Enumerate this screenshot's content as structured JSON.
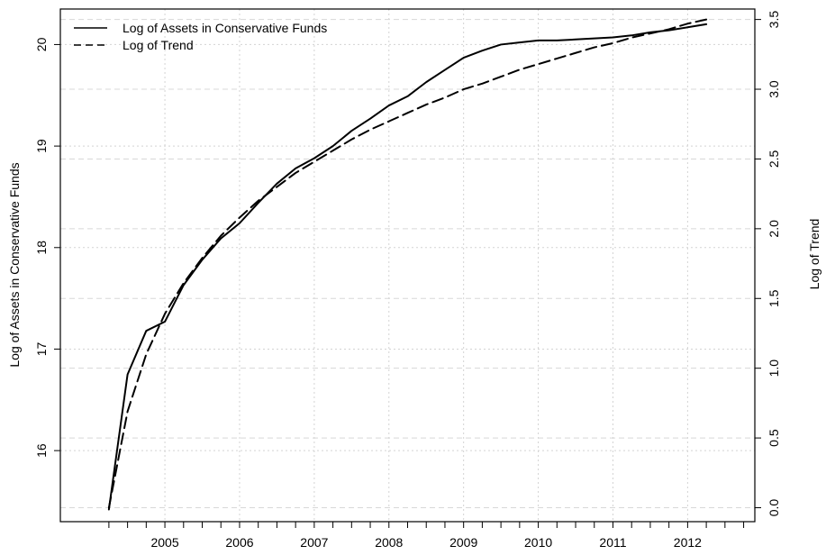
{
  "chart_data": {
    "type": "line",
    "title": "",
    "xlabel": "",
    "ylabel": "Log of Assets in Conservative Funds",
    "ylabel_right": "Log of Trend",
    "x_ticks": [
      2005,
      2006,
      2007,
      2008,
      2009,
      2010,
      2011,
      2012
    ],
    "x_tick_labels": [
      "2005",
      "2006",
      "2007",
      "2008",
      "2009",
      "2010",
      "2011",
      "2012"
    ],
    "x_minor_tick_step": 0.25,
    "xlim": [
      2003.6,
      2012.9
    ],
    "ylim": [
      15.3,
      20.35
    ],
    "y_ticks": [
      16,
      17,
      18,
      19,
      20
    ],
    "y_tick_labels": [
      "16",
      "17",
      "18",
      "19",
      "20"
    ],
    "ylim_right": [
      -0.1,
      3.575
    ],
    "y_ticks_right": [
      0.0,
      0.5,
      1.0,
      1.5,
      2.0,
      2.5,
      3.0,
      3.5
    ],
    "y_tick_labels_right": [
      "0.0",
      "0.5",
      "1.0",
      "1.5",
      "2.0",
      "2.5",
      "3.0",
      "3.5"
    ],
    "grid": true,
    "legend_position": "top-left",
    "series": [
      {
        "name": "Log of Assets in Conservative Funds",
        "axis": "left",
        "style": "solid",
        "color": "#000000",
        "x": [
          2004.25,
          2004.5,
          2004.75,
          2005.0,
          2005.25,
          2005.5,
          2005.75,
          2006.0,
          2006.25,
          2006.5,
          2006.75,
          2007.0,
          2007.25,
          2007.5,
          2007.75,
          2008.0,
          2008.25,
          2008.5,
          2008.75,
          2009.0,
          2009.25,
          2009.5,
          2009.75,
          2010.0,
          2010.25,
          2010.5,
          2010.75,
          2011.0,
          2011.25,
          2011.5,
          2011.75,
          2012.0,
          2012.25
        ],
        "values": [
          15.42,
          16.75,
          17.18,
          17.27,
          17.63,
          17.88,
          18.09,
          18.24,
          18.44,
          18.63,
          18.78,
          18.88,
          19.0,
          19.15,
          19.27,
          19.4,
          19.49,
          19.63,
          19.75,
          19.87,
          19.94,
          20.0,
          20.02,
          20.04,
          20.04,
          20.05,
          20.06,
          20.07,
          20.09,
          20.12,
          20.14,
          20.17,
          20.2
        ]
      },
      {
        "name": "Log of Trend",
        "axis": "right",
        "style": "dashed",
        "color": "#000000",
        "x": [
          2004.25,
          2004.5,
          2004.75,
          2005.0,
          2005.25,
          2005.5,
          2005.75,
          2006.0,
          2006.25,
          2006.5,
          2006.75,
          2007.0,
          2007.25,
          2007.5,
          2007.75,
          2008.0,
          2008.25,
          2008.5,
          2008.75,
          2009.0,
          2009.25,
          2009.5,
          2009.75,
          2010.0,
          2010.25,
          2010.5,
          2010.75,
          2011.0,
          2011.25,
          2011.5,
          2011.75,
          2012.0,
          2012.25
        ],
        "values": [
          0.0,
          0.69,
          1.1,
          1.39,
          1.61,
          1.79,
          1.95,
          2.08,
          2.2,
          2.3,
          2.4,
          2.48,
          2.56,
          2.64,
          2.71,
          2.77,
          2.83,
          2.89,
          2.94,
          3.0,
          3.04,
          3.09,
          3.14,
          3.18,
          3.22,
          3.26,
          3.3,
          3.33,
          3.37,
          3.4,
          3.43,
          3.47,
          3.5
        ]
      }
    ]
  }
}
